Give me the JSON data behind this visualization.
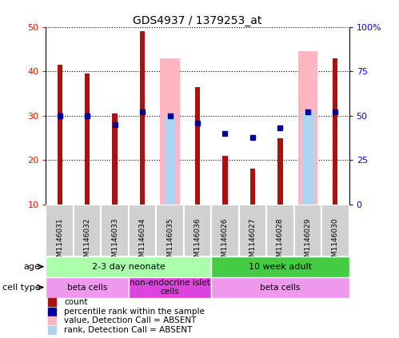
{
  "title": "GDS4937 / 1379253_at",
  "samples": [
    "GSM1146031",
    "GSM1146032",
    "GSM1146033",
    "GSM1146034",
    "GSM1146035",
    "GSM1146036",
    "GSM1146026",
    "GSM1146027",
    "GSM1146028",
    "GSM1146029",
    "GSM1146030"
  ],
  "count_values": [
    41.5,
    39.5,
    30.5,
    49.0,
    null,
    36.5,
    21.0,
    18.0,
    25.0,
    null,
    43.0
  ],
  "rank_values_pct": [
    50,
    50,
    45,
    52,
    50,
    46,
    40,
    38,
    43,
    52,
    52
  ],
  "absent_value_bars": [
    null,
    null,
    null,
    null,
    43.0,
    null,
    null,
    null,
    null,
    44.5,
    null
  ],
  "absent_rank_pct": [
    null,
    null,
    null,
    null,
    50,
    null,
    null,
    null,
    null,
    52,
    null
  ],
  "ylim_left": [
    10,
    50
  ],
  "ylim_right": [
    0,
    100
  ],
  "count_color": "#AA1111",
  "rank_color": "#000099",
  "absent_value_color": "#FFB6C1",
  "absent_rank_color": "#B0D4F0",
  "age_groups": [
    {
      "label": "2-3 day neonate",
      "start": 0,
      "end": 5,
      "color": "#AAFFAA"
    },
    {
      "label": "10 week adult",
      "start": 6,
      "end": 10,
      "color": "#44CC44"
    }
  ],
  "cell_type_groups": [
    {
      "label": "beta cells",
      "start": 0,
      "end": 2,
      "color": "#EE99EE"
    },
    {
      "label": "non-endocrine islet\ncells",
      "start": 3,
      "end": 5,
      "color": "#DD44DD"
    },
    {
      "label": "beta cells",
      "start": 6,
      "end": 10,
      "color": "#EE99EE"
    }
  ],
  "background_color": "#ffffff",
  "plot_bg": "#ffffff",
  "left_tick_color": "#CC2200",
  "right_tick_color": "#0000DD",
  "legend_items": [
    {
      "color": "#AA1111",
      "label": "count"
    },
    {
      "color": "#000099",
      "label": "percentile rank within the sample"
    },
    {
      "color": "#FFB6C1",
      "label": "value, Detection Call = ABSENT"
    },
    {
      "color": "#B0D4F0",
      "label": "rank, Detection Call = ABSENT"
    }
  ]
}
